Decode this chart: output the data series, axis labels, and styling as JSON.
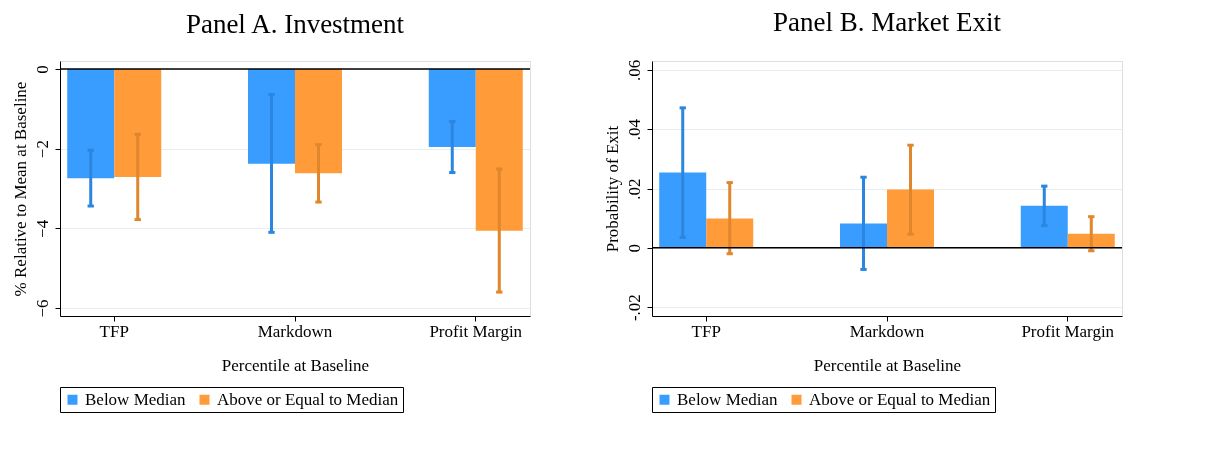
{
  "chart_data": [
    {
      "type": "bar",
      "title": "Panel A. Investment",
      "xlabel": "Percentile at Baseline",
      "ylabel": "% Relative to Mean at Baseline",
      "categories": [
        "TFP",
        "Markdown",
        "Profit Margin"
      ],
      "series": [
        {
          "name": "Below Median",
          "color": "#3399ff",
          "values": [
            -2.74,
            -2.38,
            -1.96
          ],
          "errors": [
            [
              -3.44,
              -2.04
            ],
            [
              -4.1,
              -0.64
            ],
            [
              -2.6,
              -1.32
            ]
          ]
        },
        {
          "name": "Above or Equal to Median",
          "color": "#ff9933",
          "values": [
            -2.71,
            -2.62,
            -4.06
          ],
          "errors": [
            [
              -3.78,
              -1.64
            ],
            [
              -3.34,
              -1.9
            ],
            [
              -5.6,
              -2.51
            ]
          ]
        }
      ],
      "ylim": [
        -6.2,
        0.2
      ],
      "yticks": [
        -6,
        -4,
        -2,
        0
      ],
      "grid": "y",
      "legend": "bottom",
      "ref_lines": [
        {
          "axis": "y",
          "value": 0,
          "color": "#000000"
        }
      ]
    },
    {
      "type": "bar",
      "title": "Panel B. Market Exit",
      "xlabel": "Percentile at Baseline",
      "ylabel": "Probability of Exit",
      "categories": [
        "TFP",
        "Markdown",
        "Profit Margin"
      ],
      "series": [
        {
          "name": "Below Median",
          "color": "#3399ff",
          "values": [
            0.0254,
            0.0082,
            0.0142
          ],
          "errors": [
            [
              0.0035,
              0.0472
            ],
            [
              -0.0073,
              0.0238
            ],
            [
              0.0075,
              0.0208
            ]
          ]
        },
        {
          "name": "Above or Equal to Median",
          "color": "#ff9933",
          "values": [
            0.0099,
            0.0197,
            0.0047
          ],
          "errors": [
            [
              -0.002,
              0.022
            ],
            [
              0.0046,
              0.0346
            ],
            [
              -0.001,
              0.0105
            ]
          ]
        }
      ],
      "ylim": [
        -0.023,
        0.063
      ],
      "yticks": [
        {
          "value": -0.02,
          "label": "-.02"
        },
        {
          "value": 0,
          "label": "0"
        },
        {
          "value": 0.02,
          "label": ".02"
        },
        {
          "value": 0.04,
          "label": ".04"
        },
        {
          "value": 0.06,
          "label": ".06"
        }
      ],
      "grid": "y",
      "legend": "bottom",
      "ref_lines": [
        {
          "axis": "y",
          "value": 0,
          "color": "#000000"
        }
      ]
    }
  ]
}
